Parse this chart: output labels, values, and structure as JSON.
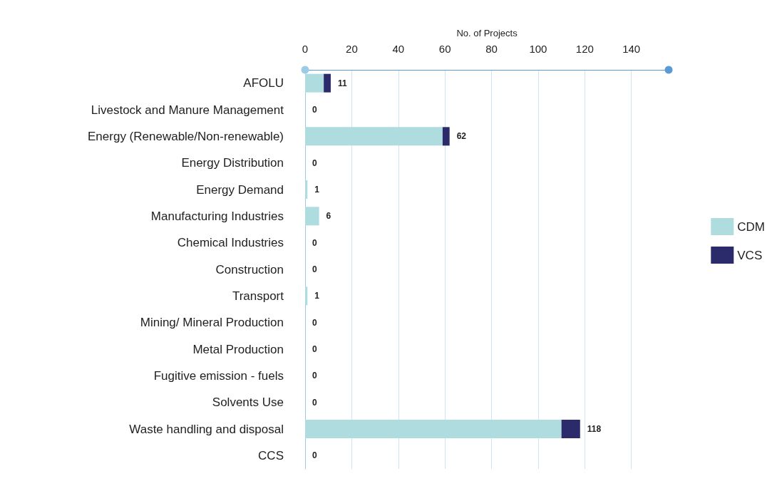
{
  "chart_data": {
    "type": "bar",
    "orientation": "horizontal",
    "stacked": true,
    "xlabel": "No. of Projects",
    "categories": [
      "AFOLU",
      "Livestock and Manure Management",
      "Energy (Renewable/Non-renewable)",
      "Energy Distribution",
      "Energy Demand",
      "Manufacturing Industries",
      "Chemical Industries",
      "Construction",
      "Transport",
      "Mining/ Mineral Production",
      "Metal Production",
      "Fugitive emission - fuels",
      "Solvents Use",
      "Waste handling and disposal",
      "CCS"
    ],
    "series": [
      {
        "name": "CDM",
        "color": "#aedcdf",
        "values": [
          8,
          0,
          59,
          0,
          1,
          6,
          0,
          0,
          1,
          0,
          0,
          0,
          0,
          110,
          0
        ]
      },
      {
        "name": "VCS",
        "color": "#2b2a6b",
        "values": [
          3,
          0,
          3,
          0,
          0,
          0,
          0,
          0,
          0,
          0,
          0,
          0,
          0,
          8,
          0
        ]
      }
    ],
    "totals": [
      "11",
      "0",
      "62",
      "0",
      "1",
      "6",
      "0",
      "0",
      "1",
      "0",
      "0",
      "0",
      "0",
      "118",
      "0"
    ],
    "xlim": [
      0,
      156
    ],
    "xticks": [
      0,
      20,
      40,
      60,
      80,
      100,
      120,
      140
    ],
    "grid": "x",
    "legend": "right"
  }
}
